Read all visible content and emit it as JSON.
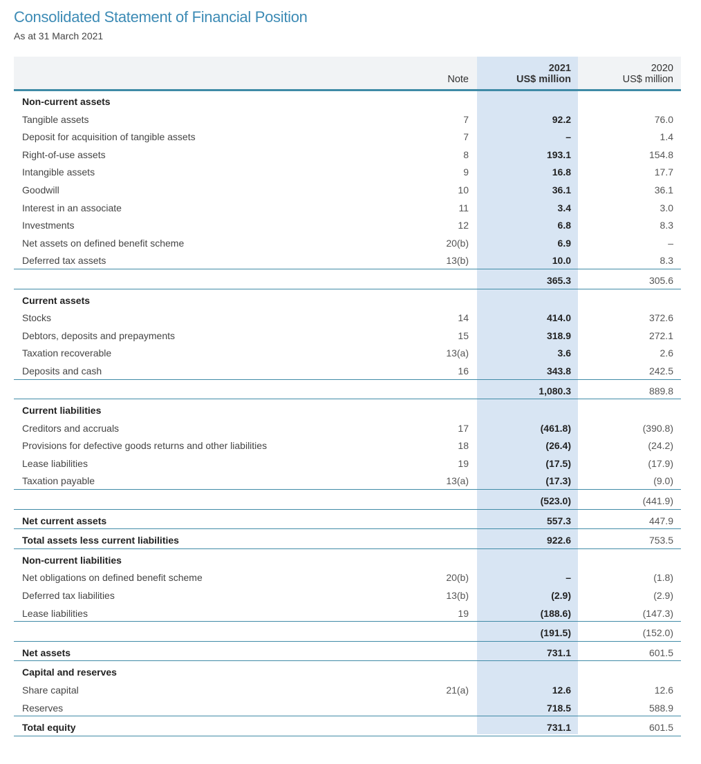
{
  "title": "Consolidated Statement of Financial Position",
  "subtitle": "As at 31 March 2021",
  "colors": {
    "title": "#3d8bb5",
    "highlight_column": "#d8e5f3",
    "rule": "#3f8aa6"
  },
  "header": {
    "note": "Note",
    "y2021": "2021",
    "y2021_unit": "US$ million",
    "y2020": "2020",
    "y2020_unit": "US$ million"
  },
  "rows": [
    {
      "label": "Non-current assets",
      "note": "",
      "v2021": "",
      "v2020": "",
      "bold": true
    },
    {
      "label": "Tangible assets",
      "note": "7",
      "v2021": "92.2",
      "v2020": "76.0"
    },
    {
      "label": "Deposit for acquisition of tangible assets",
      "note": "7",
      "v2021": "–",
      "v2020": "1.4"
    },
    {
      "label": "Right-of-use assets",
      "note": "8",
      "v2021": "193.1",
      "v2020": "154.8"
    },
    {
      "label": "Intangible assets",
      "note": "9",
      "v2021": "16.8",
      "v2020": "17.7"
    },
    {
      "label": "Goodwill",
      "note": "10",
      "v2021": "36.1",
      "v2020": "36.1"
    },
    {
      "label": "Interest in an associate",
      "note": "11",
      "v2021": "3.4",
      "v2020": "3.0"
    },
    {
      "label": "Investments",
      "note": "12",
      "v2021": "6.8",
      "v2020": "8.3"
    },
    {
      "label": "Net assets on defined benefit scheme",
      "note": "20(b)",
      "v2021": "6.9",
      "v2020": "–"
    },
    {
      "label": "Deferred tax assets",
      "note": "13(b)",
      "v2021": "10.0",
      "v2020": "8.3",
      "line": true
    },
    {
      "label": "",
      "note": "",
      "v2021": "365.3",
      "v2020": "305.6",
      "line": true,
      "gap": true
    },
    {
      "label": "Current assets",
      "note": "",
      "v2021": "",
      "v2020": "",
      "bold": true,
      "gap": true
    },
    {
      "label": "Stocks",
      "note": "14",
      "v2021": "414.0",
      "v2020": "372.6"
    },
    {
      "label": "Debtors, deposits and prepayments",
      "note": "15",
      "v2021": "318.9",
      "v2020": "272.1"
    },
    {
      "label": "Taxation recoverable",
      "note": "13(a)",
      "v2021": "3.6",
      "v2020": "2.6"
    },
    {
      "label": "Deposits and cash",
      "note": "16",
      "v2021": "343.8",
      "v2020": "242.5",
      "line": true
    },
    {
      "label": "",
      "note": "",
      "v2021": "1,080.3",
      "v2020": "889.8",
      "line": true,
      "gap": true
    },
    {
      "label": "Current liabilities",
      "note": "",
      "v2021": "",
      "v2020": "",
      "bold": true,
      "gap": true
    },
    {
      "label": "Creditors and accruals",
      "note": "17",
      "v2021": "(461.8)",
      "v2020": "(390.8)"
    },
    {
      "label": "Provisions for defective goods returns and other liabilities",
      "note": "18",
      "v2021": "(26.4)",
      "v2020": "(24.2)"
    },
    {
      "label": "Lease liabilities",
      "note": "19",
      "v2021": "(17.5)",
      "v2020": "(17.9)"
    },
    {
      "label": "Taxation payable",
      "note": "13(a)",
      "v2021": "(17.3)",
      "v2020": "(9.0)",
      "line": true
    },
    {
      "label": "",
      "note": "",
      "v2021": "(523.0)",
      "v2020": "(441.9)",
      "line": true,
      "gap": true
    },
    {
      "label": "Net current assets",
      "note": "",
      "v2021": "557.3",
      "v2020": "447.9",
      "bold": true,
      "line": true,
      "gap": true
    },
    {
      "label": "Total assets less current liabilities",
      "note": "",
      "v2021": "922.6",
      "v2020": "753.5",
      "bold": true,
      "line": true,
      "gap": true
    },
    {
      "label": "Non-current liabilities",
      "note": "",
      "v2021": "",
      "v2020": "",
      "bold": true,
      "gap": true
    },
    {
      "label": "Net obligations on defined benefit scheme",
      "note": "20(b)",
      "v2021": "–",
      "v2020": "(1.8)"
    },
    {
      "label": "Deferred tax liabilities",
      "note": "13(b)",
      "v2021": "(2.9)",
      "v2020": "(2.9)"
    },
    {
      "label": "Lease liabilities",
      "note": "19",
      "v2021": "(188.6)",
      "v2020": "(147.3)",
      "line": true
    },
    {
      "label": "",
      "note": "",
      "v2021": "(191.5)",
      "v2020": "(152.0)",
      "line": true,
      "gap": true
    },
    {
      "label": "Net assets",
      "note": "",
      "v2021": "731.1",
      "v2020": "601.5",
      "bold": true,
      "line": true,
      "gap": true
    },
    {
      "label": "Capital and reserves",
      "note": "",
      "v2021": "",
      "v2020": "",
      "bold": true,
      "gap": true
    },
    {
      "label": "Share capital",
      "note": "21(a)",
      "v2021": "12.6",
      "v2020": "12.6"
    },
    {
      "label": "Reserves",
      "note": "",
      "v2021": "718.5",
      "v2020": "588.9",
      "line": true
    },
    {
      "label": "Total equity",
      "note": "",
      "v2021": "731.1",
      "v2020": "601.5",
      "bold": true,
      "line": true,
      "gap": true
    }
  ]
}
